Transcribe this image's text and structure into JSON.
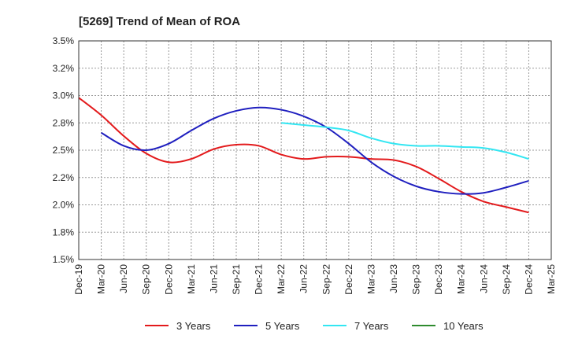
{
  "chart_data": {
    "type": "line",
    "title": "[5269]  Trend of Mean of ROA",
    "xlabel": "",
    "ylabel": "",
    "categories": [
      "Dec-19",
      "Mar-20",
      "Jun-20",
      "Sep-20",
      "Dec-20",
      "Mar-21",
      "Jun-21",
      "Sep-21",
      "Dec-21",
      "Mar-22",
      "Jun-22",
      "Sep-22",
      "Dec-22",
      "Mar-23",
      "Jun-23",
      "Sep-23",
      "Dec-23",
      "Mar-24",
      "Jun-24",
      "Sep-24",
      "Dec-24",
      "Mar-25"
    ],
    "y_ticks": [
      "3.5%",
      "3.2%",
      "3.0%",
      "2.8%",
      "2.5%",
      "2.2%",
      "2.0%",
      "1.8%",
      "1.5%"
    ],
    "ylim": [
      1.5,
      3.5
    ],
    "grid": true,
    "legend_position": "bottom",
    "series": [
      {
        "name": "3 Years",
        "color": "#e31a1c",
        "values": [
          2.98,
          2.82,
          2.63,
          2.47,
          2.39,
          2.42,
          2.51,
          2.55,
          2.54,
          2.46,
          2.42,
          2.44,
          2.44,
          2.42,
          2.41,
          2.35,
          2.24,
          2.12,
          2.03,
          1.98,
          1.93,
          null
        ]
      },
      {
        "name": "5 Years",
        "color": "#1f1fbf",
        "values": [
          null,
          2.66,
          2.54,
          2.5,
          2.56,
          2.68,
          2.79,
          2.86,
          2.89,
          2.87,
          2.81,
          2.71,
          2.56,
          2.39,
          2.26,
          2.17,
          2.12,
          2.1,
          2.11,
          2.16,
          2.22,
          null
        ]
      },
      {
        "name": "7 Years",
        "color": "#33e6f2",
        "values": [
          null,
          null,
          null,
          null,
          null,
          null,
          null,
          null,
          null,
          2.75,
          2.73,
          2.71,
          2.68,
          2.61,
          2.56,
          2.54,
          2.54,
          2.53,
          2.52,
          2.48,
          2.42,
          null
        ]
      },
      {
        "name": "10 Years",
        "color": "#2e8b2e",
        "values": [
          null,
          null,
          null,
          null,
          null,
          null,
          null,
          null,
          null,
          null,
          null,
          null,
          null,
          null,
          null,
          null,
          null,
          null,
          null,
          null,
          null,
          null
        ]
      }
    ]
  }
}
